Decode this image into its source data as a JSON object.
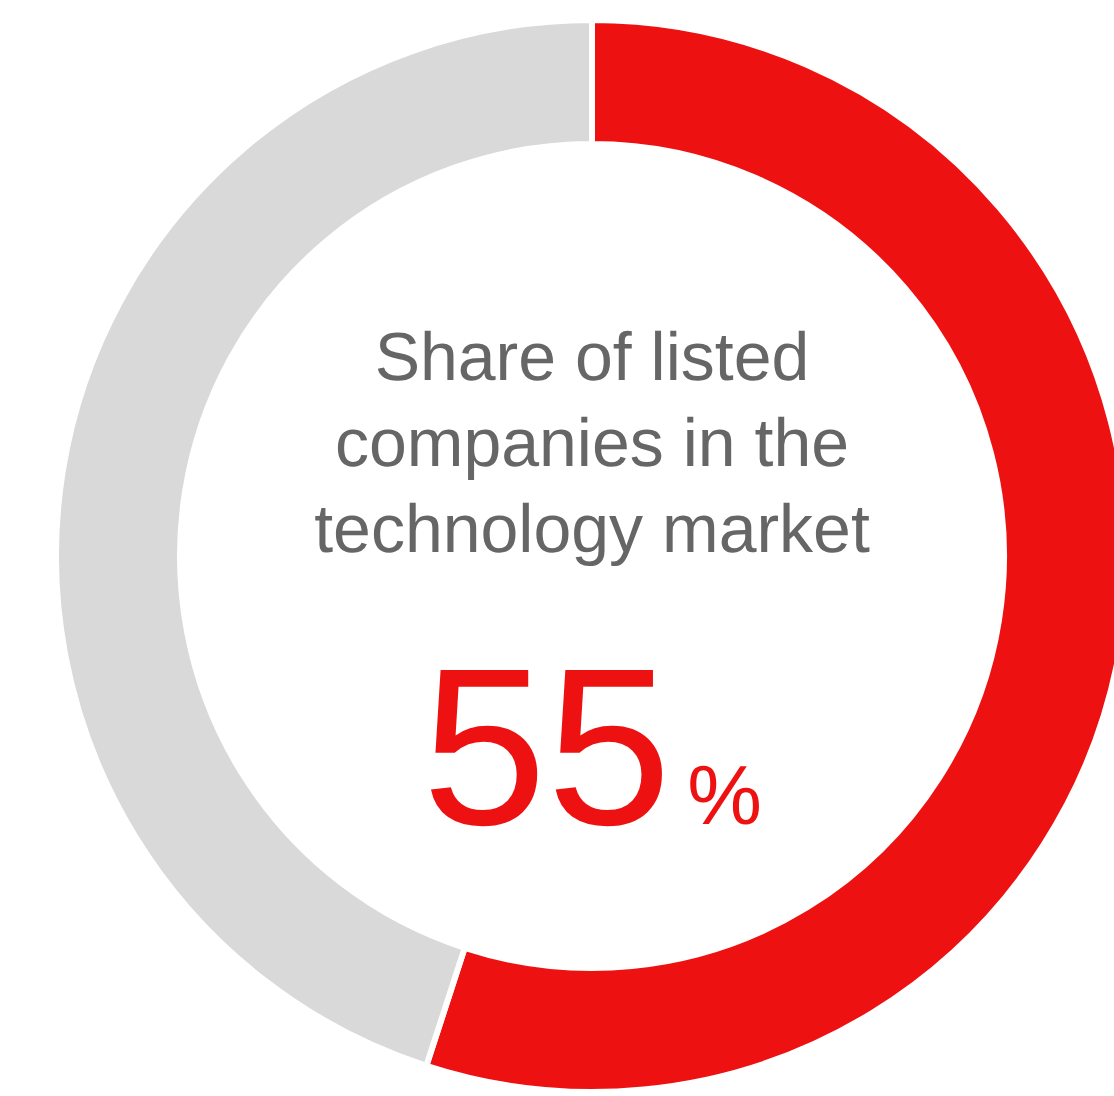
{
  "chart_data": {
    "type": "donut",
    "title": "Share of listed companies in the technology market",
    "categories": [
      null,
      null
    ],
    "values": [
      55,
      45
    ],
    "colors": [
      "#ee1111",
      "#d9d9d9"
    ],
    "value_labels": [
      "55%",
      null
    ]
  }
}
